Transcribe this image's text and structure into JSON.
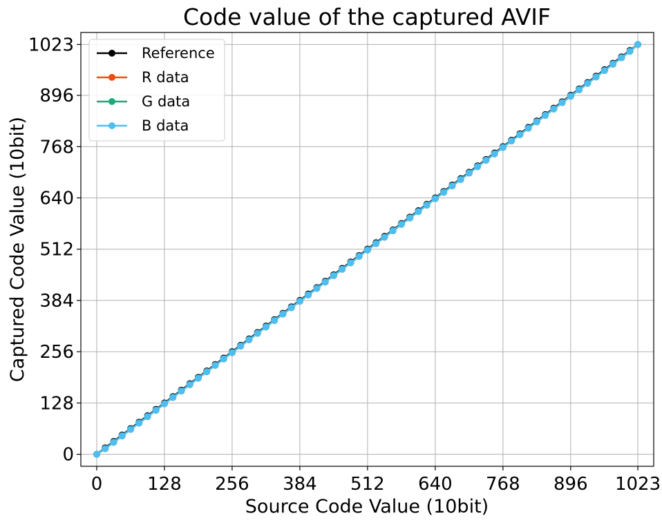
{
  "chart_data": {
    "type": "line",
    "title": "Code value of the captured AVIF",
    "xlabel": "Source Code Value (10bit)",
    "ylabel": "Captured Code Value (10bit)",
    "xlim": [
      -30,
      1053
    ],
    "ylim": [
      -30,
      1053
    ],
    "xticks": [
      0,
      128,
      256,
      384,
      512,
      640,
      768,
      896,
      1023
    ],
    "yticks": [
      0,
      128,
      256,
      384,
      512,
      640,
      768,
      896,
      1023
    ],
    "xtick_labels": [
      "0",
      "128",
      "256",
      "384",
      "512",
      "640",
      "768",
      "896",
      "1023"
    ],
    "ytick_labels": [
      "0",
      "128",
      "256",
      "384",
      "512",
      "640",
      "768",
      "896",
      "1023"
    ],
    "grid": true,
    "legend_position": "top-left",
    "x": [
      0,
      16,
      32,
      48,
      64,
      80,
      96,
      112,
      128,
      144,
      160,
      176,
      192,
      208,
      224,
      240,
      256,
      272,
      288,
      304,
      320,
      336,
      352,
      368,
      384,
      400,
      416,
      432,
      448,
      464,
      480,
      496,
      512,
      528,
      544,
      560,
      576,
      592,
      608,
      624,
      640,
      656,
      672,
      688,
      704,
      720,
      736,
      752,
      768,
      784,
      800,
      816,
      832,
      848,
      864,
      880,
      896,
      912,
      928,
      944,
      960,
      976,
      992,
      1008,
      1023
    ],
    "series": [
      {
        "name": "Reference",
        "color": "#000000",
        "values": [
          0,
          16,
          32,
          48,
          64,
          80,
          96,
          112,
          128,
          144,
          160,
          176,
          192,
          208,
          224,
          240,
          256,
          272,
          288,
          304,
          320,
          336,
          352,
          368,
          384,
          400,
          416,
          432,
          448,
          464,
          480,
          496,
          512,
          528,
          544,
          560,
          576,
          592,
          608,
          624,
          640,
          656,
          672,
          688,
          704,
          720,
          736,
          752,
          768,
          784,
          800,
          816,
          832,
          848,
          864,
          880,
          896,
          912,
          928,
          944,
          960,
          976,
          992,
          1008,
          1023
        ]
      },
      {
        "name": "R data",
        "color": "#f04a0c",
        "values": [
          0,
          14,
          30,
          46,
          62,
          78,
          94,
          110,
          126,
          142,
          158,
          174,
          190,
          206,
          222,
          238,
          254,
          270,
          286,
          302,
          318,
          334,
          350,
          366,
          382,
          398,
          414,
          430,
          446,
          462,
          478,
          494,
          510,
          526,
          542,
          558,
          574,
          590,
          606,
          622,
          638,
          654,
          670,
          686,
          702,
          718,
          734,
          750,
          766,
          782,
          798,
          814,
          830,
          846,
          862,
          878,
          894,
          910,
          926,
          942,
          958,
          974,
          990,
          1006,
          1023
        ]
      },
      {
        "name": "G data",
        "color": "#17ac7a",
        "values": [
          0,
          14,
          30,
          46,
          62,
          78,
          94,
          110,
          126,
          142,
          158,
          174,
          190,
          206,
          222,
          238,
          254,
          270,
          286,
          302,
          318,
          334,
          350,
          366,
          382,
          398,
          414,
          430,
          446,
          462,
          478,
          494,
          510,
          526,
          542,
          558,
          574,
          590,
          606,
          622,
          638,
          654,
          670,
          686,
          702,
          718,
          734,
          750,
          766,
          782,
          798,
          814,
          830,
          846,
          862,
          878,
          894,
          910,
          926,
          942,
          958,
          974,
          990,
          1006,
          1023
        ]
      },
      {
        "name": "B data",
        "color": "#4ebef0",
        "values": [
          0,
          14,
          30,
          46,
          62,
          78,
          94,
          110,
          126,
          142,
          158,
          174,
          190,
          206,
          222,
          238,
          254,
          270,
          286,
          302,
          318,
          334,
          350,
          366,
          382,
          398,
          414,
          430,
          446,
          462,
          478,
          494,
          510,
          526,
          542,
          558,
          574,
          590,
          606,
          622,
          638,
          654,
          670,
          686,
          702,
          718,
          734,
          750,
          766,
          782,
          798,
          814,
          830,
          846,
          862,
          878,
          894,
          910,
          926,
          942,
          958,
          974,
          990,
          1006,
          1023
        ]
      }
    ]
  }
}
